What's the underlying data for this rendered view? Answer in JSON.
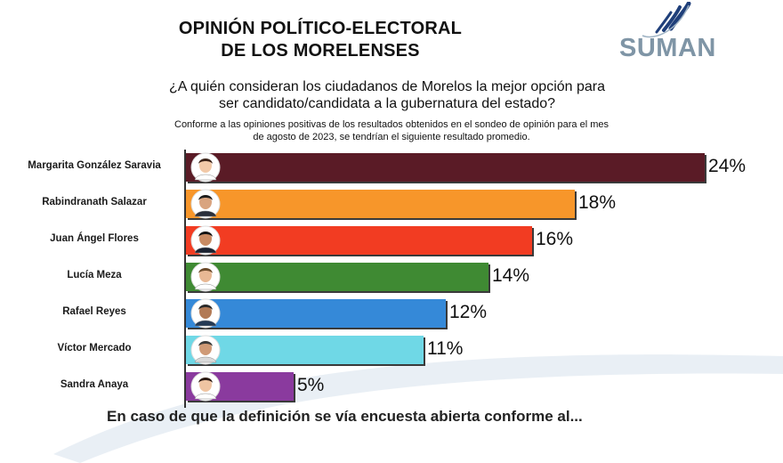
{
  "header": {
    "title_line1": "OPINIÓN POLÍTICO-ELECTORAL",
    "title_line2": "DE LOS MORELENSES",
    "logo_text": "SUMAN"
  },
  "question": {
    "line1": "¿A quién consideran los ciudadanos de Morelos la mejor opción para",
    "line2": "ser candidato/candidata a la gubernatura del estado?"
  },
  "note": {
    "line1": "Conforme a las opiniones positivas de los resultados obtenidos en el sondeo de opinión para el mes",
    "line2": "de agosto de 2023, se tendrían el siguiente resultado promedio."
  },
  "footer": {
    "text": "En caso de que la definición se vía encuesta abierta conforme al..."
  },
  "chart_data": {
    "type": "bar",
    "orientation": "horizontal",
    "title": "",
    "xlabel": "",
    "ylabel": "",
    "xlim": [
      0,
      24
    ],
    "grid": false,
    "legend": "none",
    "categories": [
      "Margarita González Saravia",
      "Rabindranath Salazar",
      "Juan Ángel Flores",
      "Lucía Meza",
      "Rafael Reyes",
      "Víctor Mercado",
      "Sandra Anaya"
    ],
    "values": [
      24,
      18,
      16,
      14,
      12,
      11,
      5
    ],
    "value_labels": [
      "24%",
      "18%",
      "16%",
      "14%",
      "12%",
      "11%",
      "5%"
    ],
    "colors": [
      "#5a1b26",
      "#f7962a",
      "#f23c22",
      "#3f8a33",
      "#3589d8",
      "#6fd8e6",
      "#8a3a9e"
    ]
  }
}
